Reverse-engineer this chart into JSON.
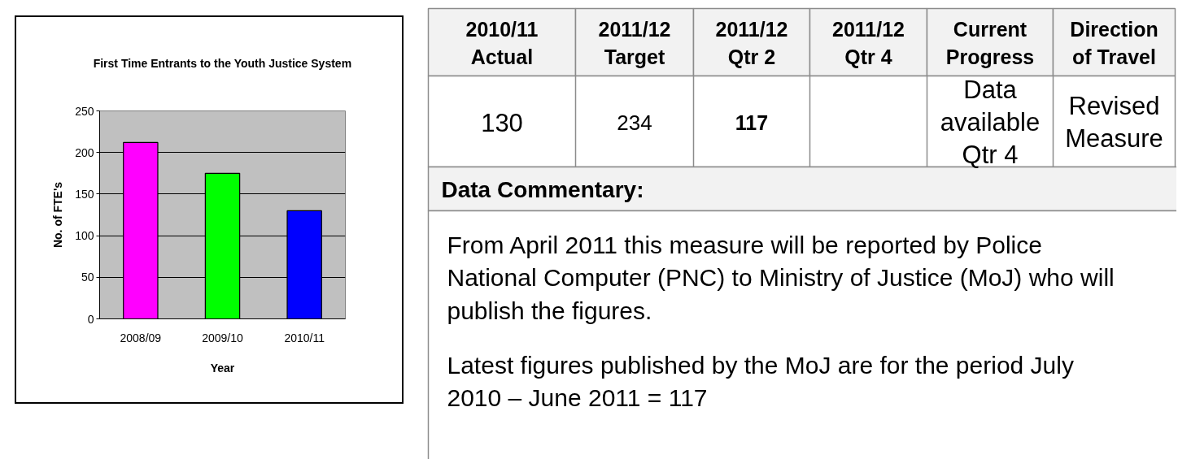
{
  "chart_data": [
    {
      "type": "bar",
      "title": "First Time Entrants to the Youth Justice System",
      "xlabel": "Year",
      "ylabel": "No. of FTE's",
      "categories": [
        "2008/09",
        "2009/10",
        "2010/11"
      ],
      "values": [
        212,
        175,
        130
      ],
      "colors": [
        "#ff00ff",
        "#00ff00",
        "#0000ff"
      ],
      "ylim": [
        0,
        250
      ],
      "yticks": [
        0,
        50,
        100,
        150,
        200,
        250
      ],
      "grid": "y"
    },
    {
      "type": "other",
      "title": "Data Commentary:",
      "categories": [
        "2010/11 Actual",
        "2011/12 Target",
        "2011/12 Qtr 2",
        "2011/12 Qtr 4",
        "Current Progress",
        "Direction of Travel"
      ],
      "value_labels": [
        "130",
        "234",
        "117",
        null,
        "Data available Qtr 4",
        "Revised Measure"
      ],
      "annotations": [
        "From April 2011 this measure will be reported by Police National Computer (PNC) to Ministry of Justice (MoJ) who will publish the figures.",
        "Latest figures published by the MoJ are for the period July 2010 – June 2011 = 117"
      ]
    }
  ]
}
